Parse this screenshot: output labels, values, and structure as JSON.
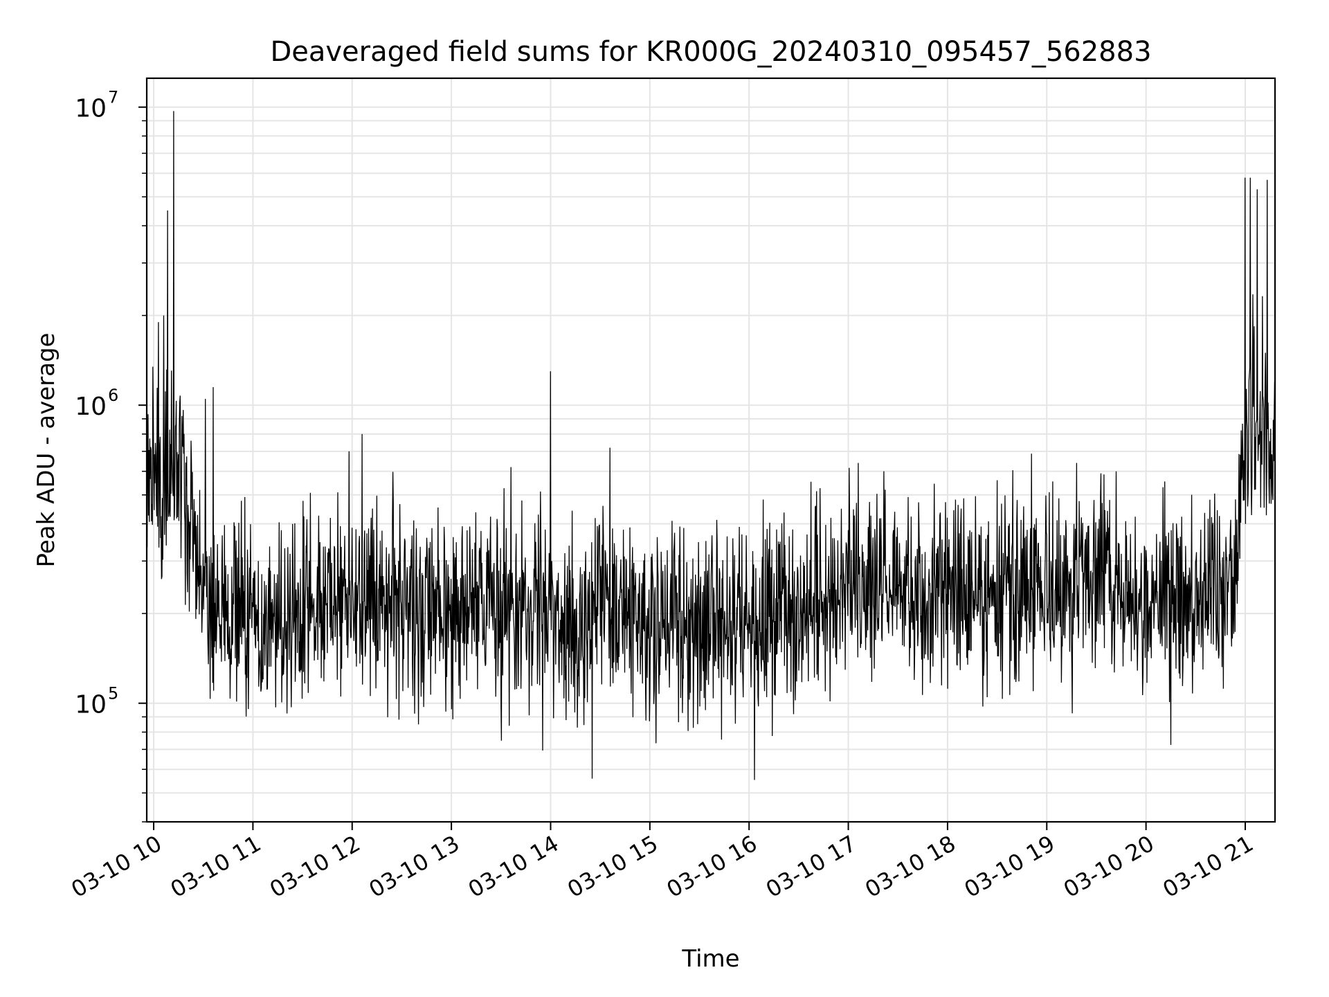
{
  "chart_data": {
    "type": "line",
    "title": "Deaveraged field sums for KR000G_20240310_095457_562883",
    "xlabel": "Time",
    "ylabel": "Peak ADU - average",
    "yscale": "log",
    "xlim_hours": [
      9.93,
      21.3
    ],
    "ylim": [
      40000,
      12500000
    ],
    "grid": true,
    "line_color": "#000000",
    "x_tick_labels": [
      "03-10 10",
      "03-10 11",
      "03-10 12",
      "03-10 13",
      "03-10 14",
      "03-10 15",
      "03-10 16",
      "03-10 17",
      "03-10 18",
      "03-10 19",
      "03-10 20",
      "03-10 21"
    ],
    "x_tick_hours": [
      10,
      11,
      12,
      13,
      14,
      15,
      16,
      17,
      18,
      19,
      20,
      21
    ],
    "y_major_ticks": [
      {
        "value": 100000,
        "base": "10",
        "exp": "5"
      },
      {
        "value": 1000000,
        "base": "10",
        "exp": "6"
      },
      {
        "value": 10000000,
        "base": "10",
        "exp": "7"
      }
    ],
    "series": [
      {
        "x_hours": [
          9.93,
          9.96,
          10.0,
          10.05,
          10.1,
          10.15,
          10.2,
          10.25,
          10.3,
          10.35,
          10.4,
          10.45,
          10.5,
          10.6,
          10.7,
          10.8,
          10.9,
          11.0,
          11.2,
          11.4,
          11.6,
          11.8,
          11.95,
          12.0,
          12.05,
          12.2,
          12.4,
          12.6,
          12.8,
          13.0,
          13.2,
          13.4,
          13.6,
          13.8,
          14.0,
          14.2,
          14.4,
          14.6,
          14.8,
          15.0,
          15.2,
          15.4,
          15.6,
          15.8,
          16.0,
          16.2,
          16.4,
          16.6,
          16.8,
          17.0,
          17.2,
          17.4,
          17.6,
          17.8,
          18.0,
          18.2,
          18.4,
          18.6,
          18.8,
          19.0,
          19.2,
          19.4,
          19.6,
          19.8,
          20.0,
          20.2,
          20.4,
          20.6,
          20.8,
          20.9,
          20.95,
          21.0,
          21.05,
          21.1,
          21.15,
          21.2,
          21.25,
          21.3
        ],
        "baseline": [
          500000,
          560000,
          600000,
          550000,
          500000,
          600000,
          650000,
          620000,
          600000,
          420000,
          380000,
          300000,
          230000,
          210000,
          200000,
          200000,
          210000,
          200000,
          190000,
          190000,
          200000,
          210000,
          230000,
          250000,
          230000,
          210000,
          220000,
          210000,
          210000,
          200000,
          210000,
          200000,
          210000,
          200000,
          200000,
          190000,
          190000,
          200000,
          190000,
          190000,
          190000,
          180000,
          180000,
          190000,
          180000,
          190000,
          200000,
          200000,
          220000,
          240000,
          250000,
          250000,
          250000,
          240000,
          240000,
          250000,
          240000,
          250000,
          250000,
          240000,
          240000,
          240000,
          250000,
          240000,
          230000,
          230000,
          240000,
          230000,
          220000,
          240000,
          450000,
          650000,
          800000,
          850000,
          800000,
          800000,
          780000,
          800000
        ],
        "spikes": [
          [
            10.05,
            1900000
          ],
          [
            10.1,
            2000000
          ],
          [
            10.14,
            4500000
          ],
          [
            10.2,
            9700000
          ],
          [
            10.52,
            1050000
          ],
          [
            10.6,
            1150000
          ],
          [
            11.97,
            700000
          ],
          [
            12.1,
            800000
          ],
          [
            13.6,
            620000
          ],
          [
            14.0,
            1300000
          ],
          [
            14.6,
            720000
          ],
          [
            17.1,
            640000
          ],
          [
            18.5,
            560000
          ],
          [
            19.3,
            640000
          ],
          [
            19.7,
            600000
          ],
          [
            21.0,
            5800000
          ],
          [
            21.05,
            5800000
          ],
          [
            21.12,
            5300000
          ],
          [
            21.22,
            5700000
          ]
        ]
      }
    ]
  }
}
